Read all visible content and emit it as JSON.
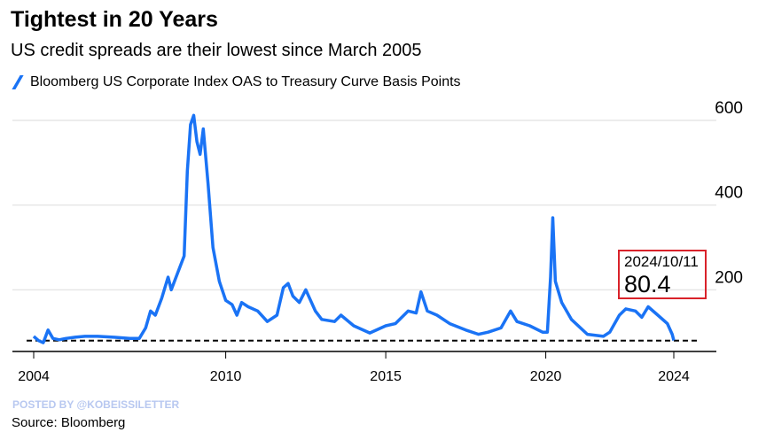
{
  "chart_data": {
    "type": "line",
    "title": "Tightest in 20 Years",
    "subtitle": "US credit spreads are their lowest since March 2005",
    "legend": "Bloomberg US Corporate Index OAS to Treasury Curve Basis Points",
    "xlabel": "",
    "ylabel": "",
    "x_ticks": [
      2004,
      2010,
      2015,
      2020,
      2024
    ],
    "y_ticks": [
      200,
      400,
      600
    ],
    "ylim": [
      55,
      640
    ],
    "reference_line": 80,
    "annotation": {
      "date": "2024/10/11",
      "value": "80.4"
    },
    "colors": {
      "line": "#1a73f5",
      "callout": "#d9222a"
    },
    "series": [
      {
        "name": "OAS",
        "points": [
          [
            2004.0,
            90
          ],
          [
            2004.15,
            80
          ],
          [
            2004.3,
            75
          ],
          [
            2004.45,
            105
          ],
          [
            2004.6,
            85
          ],
          [
            2004.8,
            82
          ],
          [
            2005.0,
            85
          ],
          [
            2005.3,
            88
          ],
          [
            2005.6,
            90
          ],
          [
            2006.0,
            90
          ],
          [
            2006.5,
            88
          ],
          [
            2007.0,
            85
          ],
          [
            2007.3,
            85
          ],
          [
            2007.5,
            110
          ],
          [
            2007.65,
            150
          ],
          [
            2007.8,
            140
          ],
          [
            2008.0,
            180
          ],
          [
            2008.2,
            230
          ],
          [
            2008.3,
            200
          ],
          [
            2008.5,
            240
          ],
          [
            2008.7,
            280
          ],
          [
            2008.8,
            480
          ],
          [
            2008.9,
            590
          ],
          [
            2009.0,
            612
          ],
          [
            2009.1,
            550
          ],
          [
            2009.2,
            520
          ],
          [
            2009.3,
            580
          ],
          [
            2009.45,
            450
          ],
          [
            2009.6,
            300
          ],
          [
            2009.8,
            220
          ],
          [
            2010.0,
            175
          ],
          [
            2010.2,
            165
          ],
          [
            2010.35,
            140
          ],
          [
            2010.5,
            170
          ],
          [
            2010.7,
            160
          ],
          [
            2011.0,
            150
          ],
          [
            2011.3,
            125
          ],
          [
            2011.6,
            140
          ],
          [
            2011.8,
            205
          ],
          [
            2011.95,
            215
          ],
          [
            2012.1,
            185
          ],
          [
            2012.3,
            170
          ],
          [
            2012.5,
            200
          ],
          [
            2012.8,
            150
          ],
          [
            2013.0,
            130
          ],
          [
            2013.4,
            125
          ],
          [
            2013.6,
            140
          ],
          [
            2014.0,
            115
          ],
          [
            2014.5,
            98
          ],
          [
            2015.0,
            115
          ],
          [
            2015.3,
            120
          ],
          [
            2015.7,
            150
          ],
          [
            2015.95,
            145
          ],
          [
            2016.1,
            195
          ],
          [
            2016.3,
            150
          ],
          [
            2016.6,
            140
          ],
          [
            2017.0,
            120
          ],
          [
            2017.5,
            105
          ],
          [
            2017.9,
            95
          ],
          [
            2018.2,
            100
          ],
          [
            2018.6,
            110
          ],
          [
            2018.9,
            150
          ],
          [
            2019.1,
            125
          ],
          [
            2019.5,
            115
          ],
          [
            2019.9,
            100
          ],
          [
            2020.05,
            100
          ],
          [
            2020.15,
            230
          ],
          [
            2020.22,
            370
          ],
          [
            2020.3,
            220
          ],
          [
            2020.5,
            170
          ],
          [
            2020.8,
            130
          ],
          [
            2021.3,
            95
          ],
          [
            2021.8,
            90
          ],
          [
            2022.0,
            100
          ],
          [
            2022.3,
            140
          ],
          [
            2022.5,
            155
          ],
          [
            2022.8,
            150
          ],
          [
            2023.0,
            135
          ],
          [
            2023.2,
            160
          ],
          [
            2023.5,
            140
          ],
          [
            2023.8,
            120
          ],
          [
            2023.95,
            95
          ],
          [
            2024.0,
            80.4
          ]
        ]
      }
    ]
  },
  "footer": {
    "posted": "POSTED BY @KOBEISSILETTER",
    "source": "Source: Bloomberg"
  }
}
